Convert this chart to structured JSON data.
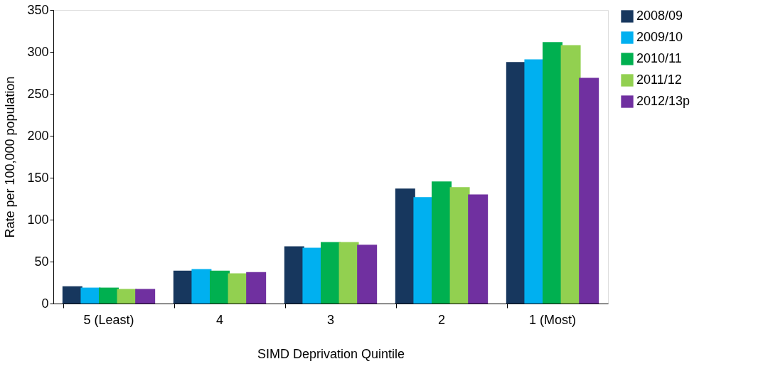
{
  "chart_data": {
    "type": "bar",
    "xlabel": "SIMD Deprivation Quintile",
    "ylabel": "Rate per 100,000  population",
    "categories": [
      "5 (Least)",
      "4",
      "3",
      "2",
      "1 (Most)"
    ],
    "ylim": [
      0,
      350
    ],
    "yticks": [
      0,
      50,
      100,
      150,
      200,
      250,
      300,
      350
    ],
    "legend": "right",
    "grid": false,
    "series": [
      {
        "name": "2008/09",
        "color": "#17375e",
        "values": [
          20.6,
          39.2,
          68.2,
          137,
          288
        ]
      },
      {
        "name": "2009/10",
        "color": "#00b0f0",
        "values": [
          19,
          41.1,
          66.5,
          127,
          291
        ]
      },
      {
        "name": "2010/11",
        "color": "#00b050",
        "values": [
          19,
          39.2,
          73.4,
          145.5,
          311.6
        ]
      },
      {
        "name": "2011/12",
        "color": "#92d050",
        "values": [
          17.4,
          36,
          73.4,
          138.7,
          308
        ]
      },
      {
        "name": "2012/13p",
        "color": "#7030a0",
        "values": [
          17.4,
          37.5,
          70.2,
          130,
          269
        ]
      }
    ]
  }
}
